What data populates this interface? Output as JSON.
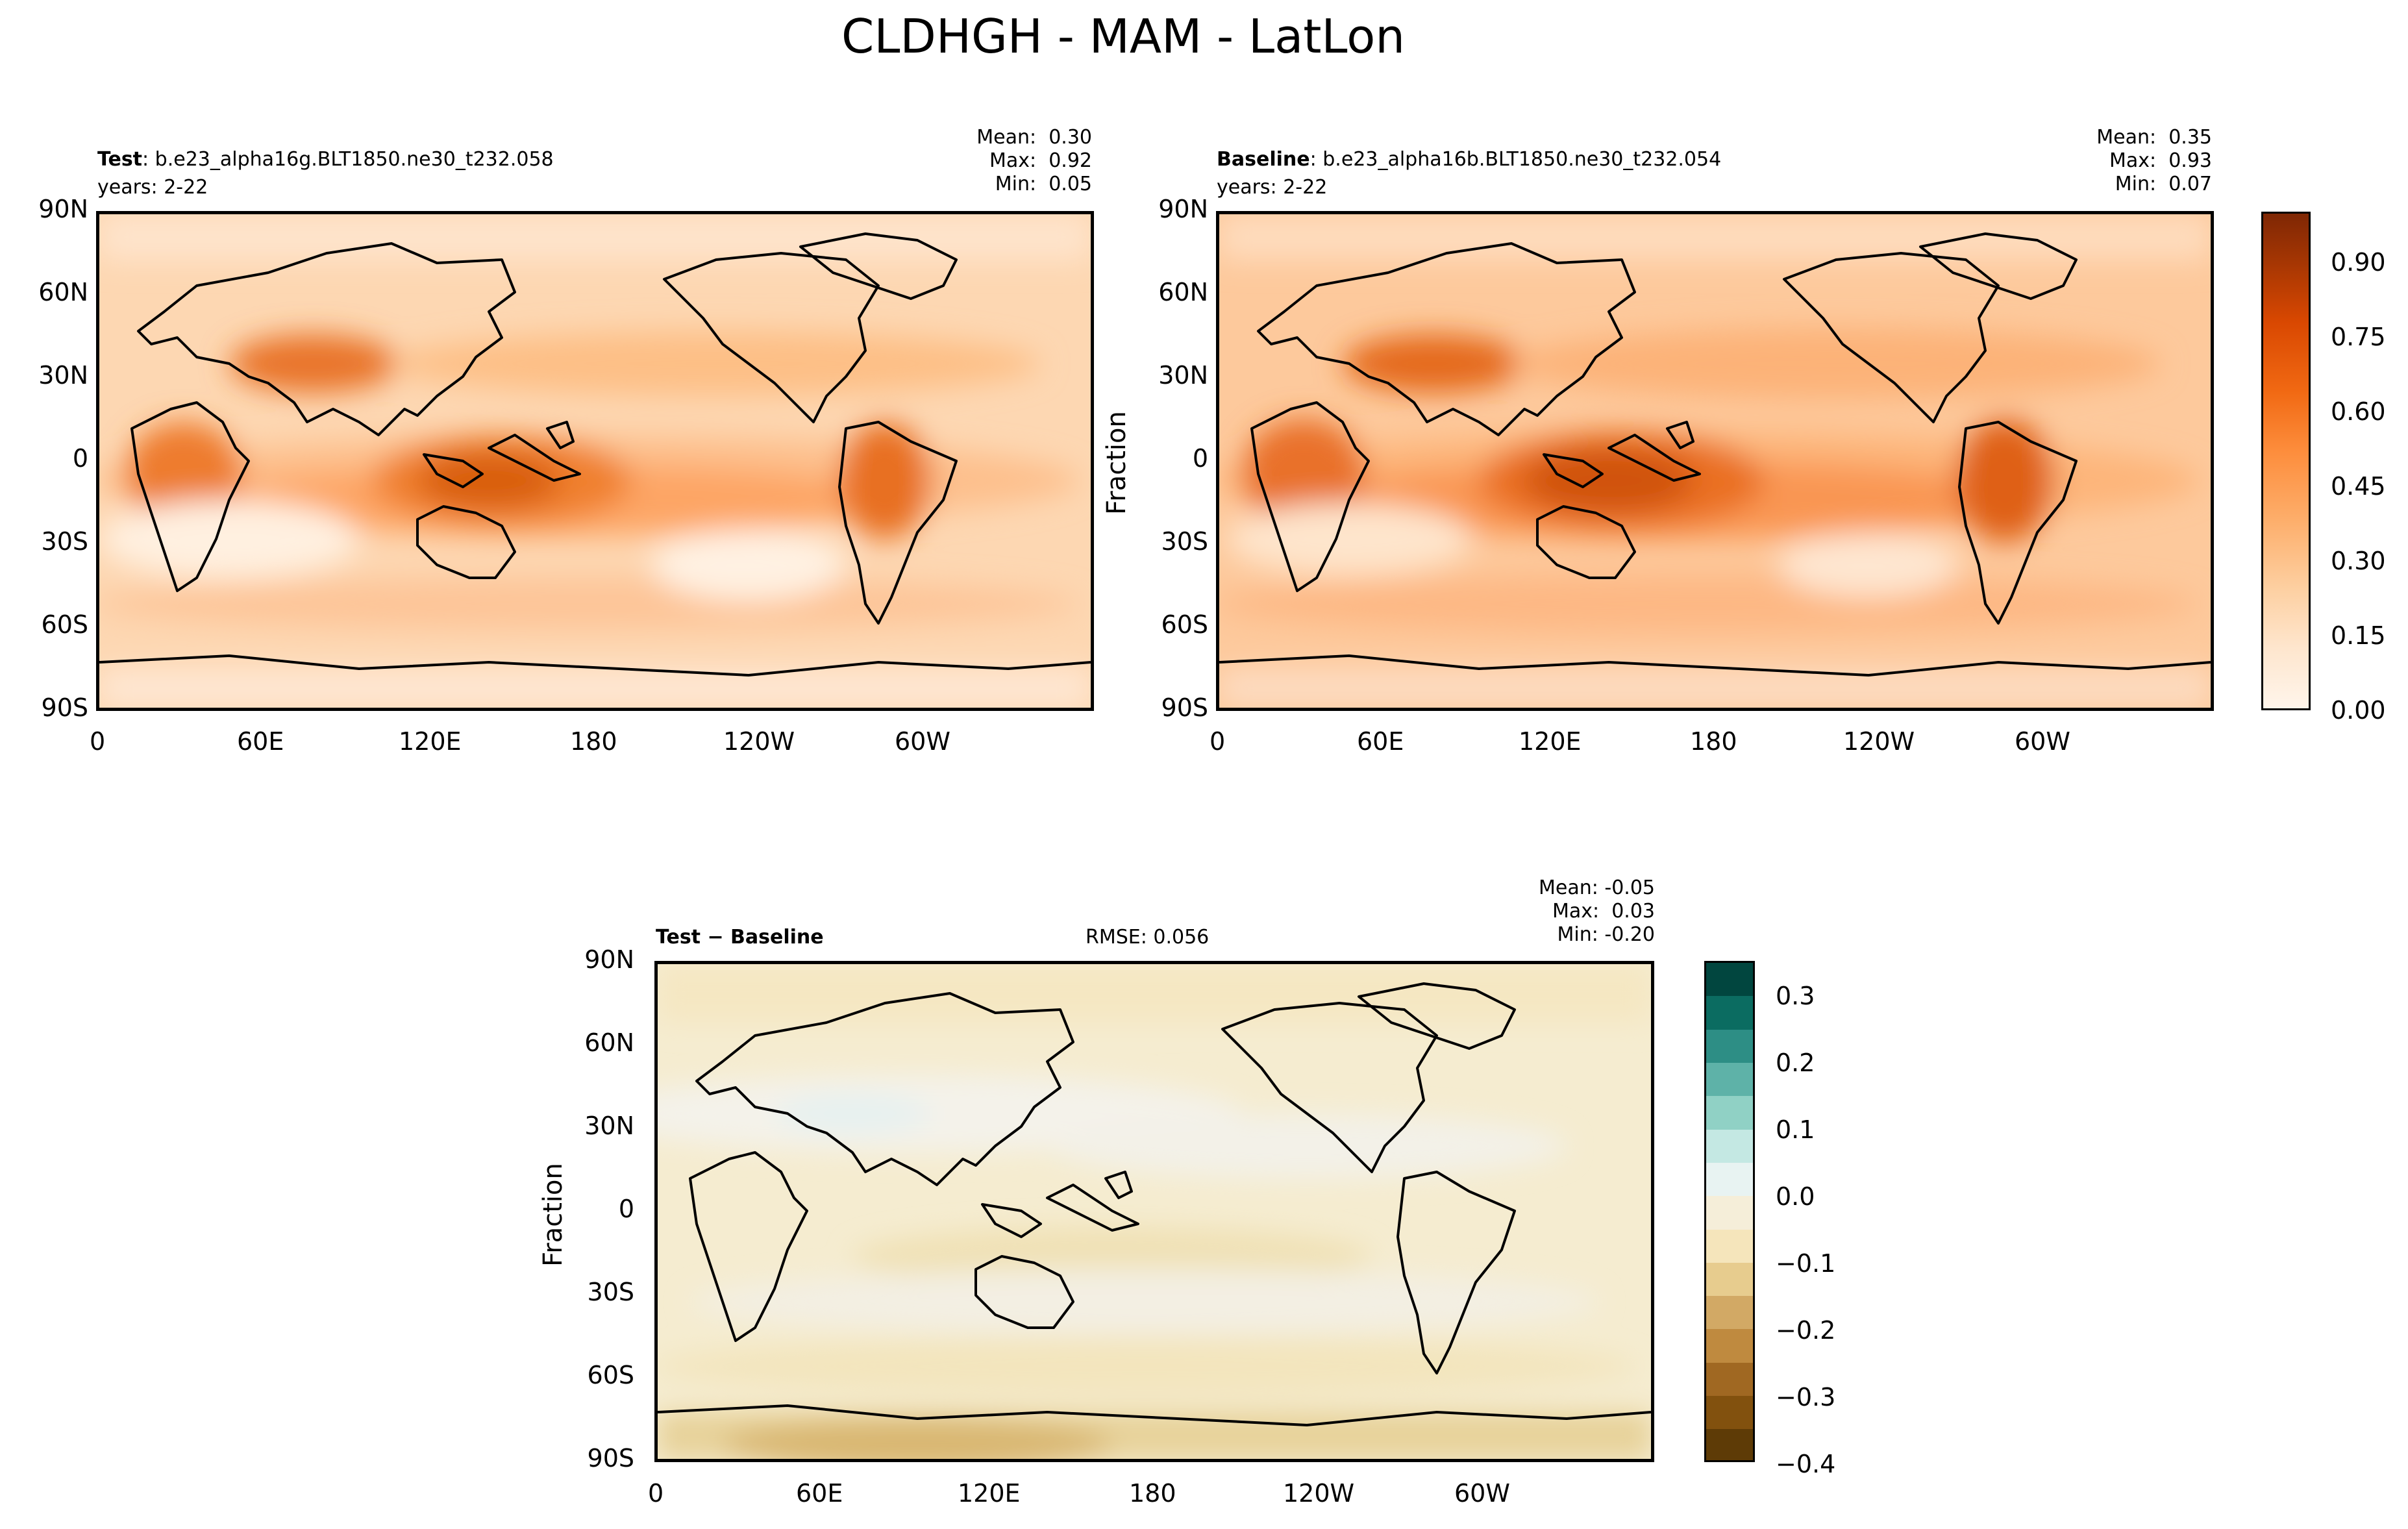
{
  "figure": {
    "title": "CLDHGH - MAM - LatLon"
  },
  "panels": {
    "test": {
      "label_bold": "Test",
      "label_rest": ": b.e23_alpha16g.BLT1850.ne30_t232.058",
      "years": "years: 2-22",
      "stats": "Mean:  0.30\nMax:  0.92\nMin:  0.05",
      "ylabel": ""
    },
    "baseline": {
      "label_bold": "Baseline",
      "label_rest": ": b.e23_alpha16b.BLT1850.ne30_t232.054",
      "years": "years: 2-22",
      "stats": "Mean:  0.35\nMax:  0.93\nMin:  0.07",
      "ylabel": "Fraction"
    },
    "diff": {
      "label_bold": "Test − Baseline",
      "rmse": "RMSE: 0.056",
      "stats": "Mean: -0.05\nMax:  0.03\nMin: -0.20",
      "ylabel": "Fraction"
    }
  },
  "axes": {
    "lat_ticks": [
      "90N",
      "60N",
      "30N",
      "0",
      "30S",
      "60S",
      "90S"
    ],
    "lon_ticks": [
      "0",
      "60E",
      "120E",
      "180",
      "120W",
      "60W"
    ]
  },
  "colorbars": {
    "main": {
      "ticks": [
        "0.90",
        "0.75",
        "0.60",
        "0.45",
        "0.30",
        "0.15",
        "0.00"
      ],
      "range": [
        0,
        1
      ],
      "colormap": "Oranges"
    },
    "diff": {
      "ticks": [
        "0.3",
        "0.2",
        "0.1",
        "0.0",
        "−0.1",
        "−0.2",
        "−0.3",
        "−0.4"
      ],
      "range": [
        -0.4,
        0.35
      ],
      "colormap": "BrBG"
    }
  },
  "chart_data": [
    {
      "type": "heatmap",
      "title": "Test",
      "variable": "CLDHGH",
      "season": "MAM",
      "units": "Fraction",
      "xlim": [
        "0",
        "60W"
      ],
      "ylim": [
        "90S",
        "90N"
      ],
      "mean": 0.3,
      "max": 0.92,
      "min": 0.05
    },
    {
      "type": "heatmap",
      "title": "Baseline",
      "variable": "CLDHGH",
      "season": "MAM",
      "units": "Fraction",
      "mean": 0.35,
      "max": 0.93,
      "min": 0.07
    },
    {
      "type": "heatmap",
      "title": "Test − Baseline",
      "variable": "CLDHGH",
      "season": "MAM",
      "units": "Fraction",
      "rmse": 0.056,
      "mean": -0.05,
      "max": 0.03,
      "min": -0.2
    }
  ]
}
